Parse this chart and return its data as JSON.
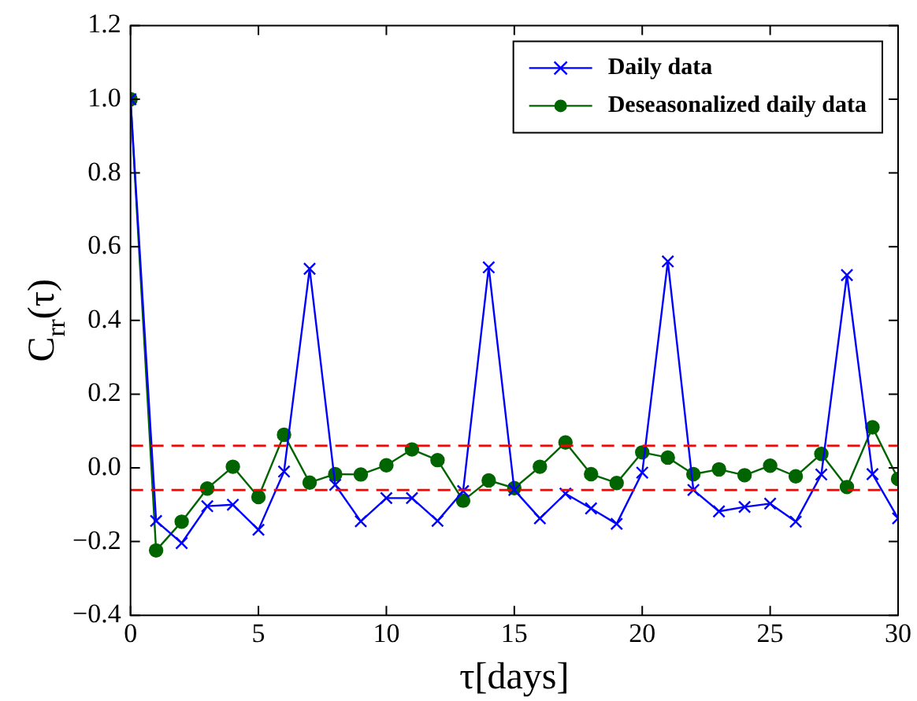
{
  "chart_data": {
    "type": "line",
    "xlabel": "τ[days]",
    "ylabel": "C$_{rr}$(τ)",
    "x": [
      0,
      1,
      2,
      3,
      4,
      5,
      6,
      7,
      8,
      9,
      10,
      11,
      12,
      13,
      14,
      15,
      16,
      17,
      18,
      19,
      20,
      21,
      22,
      23,
      24,
      25,
      26,
      27,
      28,
      29,
      30
    ],
    "series": [
      {
        "name": "Daily data",
        "color": "#0000ff",
        "marker": "cross",
        "values": [
          1.0,
          -0.144,
          -0.204,
          -0.104,
          -0.1,
          -0.168,
          -0.01,
          0.54,
          -0.046,
          -0.145,
          -0.082,
          -0.082,
          -0.144,
          -0.063,
          0.544,
          -0.06,
          -0.137,
          -0.07,
          -0.11,
          -0.152,
          -0.013,
          0.56,
          -0.06,
          -0.118,
          -0.106,
          -0.097,
          -0.146,
          -0.018,
          0.523,
          -0.017,
          -0.137
        ]
      },
      {
        "name": "Deseasonalized daily data",
        "color": "#006400",
        "marker": "circle",
        "values": [
          1.0,
          -0.224,
          -0.146,
          -0.056,
          0.003,
          -0.079,
          0.09,
          -0.04,
          -0.017,
          -0.018,
          0.007,
          0.05,
          0.021,
          -0.089,
          -0.034,
          -0.055,
          0.003,
          0.069,
          -0.017,
          -0.041,
          0.042,
          0.028,
          -0.017,
          -0.004,
          -0.02,
          0.006,
          -0.023,
          0.038,
          -0.052,
          0.11,
          -0.03
        ]
      }
    ],
    "ref_lines": [
      {
        "axis": "y",
        "value": 0.06,
        "color": "#ff0000",
        "line_style": "dashed"
      },
      {
        "axis": "y",
        "value": -0.06,
        "color": "#ff0000",
        "line_style": "dashed"
      }
    ],
    "xlim": [
      0,
      30
    ],
    "xticks": [
      0,
      5,
      10,
      15,
      20,
      25,
      30
    ],
    "ylim": [
      -0.4,
      1.2
    ],
    "yticks": [
      {
        "value": -0.4,
        "label": "−0.4"
      },
      {
        "value": -0.2,
        "label": "−0.2"
      },
      {
        "value": 0,
        "label": "0.0"
      },
      {
        "value": 0.2,
        "label": "0.2"
      },
      {
        "value": 0.4,
        "label": "0.4"
      },
      {
        "value": 0.6,
        "label": "0.6"
      },
      {
        "value": 0.8,
        "label": "0.8"
      },
      {
        "value": 1,
        "label": "1.0"
      },
      {
        "value": 1.2,
        "label": "1.2"
      }
    ],
    "grid": false,
    "legend": "top right",
    "line_style": "solid"
  }
}
